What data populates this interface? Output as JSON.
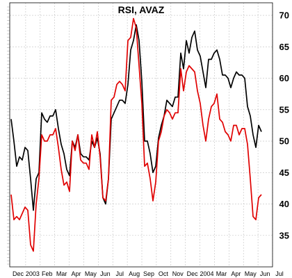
{
  "chart_data": {
    "type": "line",
    "title": "RSI, AVAZ",
    "xlabel": "",
    "ylabel": "",
    "ylim": [
      30,
      72
    ],
    "y_ticks": [
      35,
      40,
      45,
      50,
      55,
      60,
      65,
      70
    ],
    "x_ticks": [
      "Dec",
      "2003",
      "Feb",
      "Mar",
      "Apr",
      "May",
      "Jun",
      "Jul",
      "Aug",
      "Sep",
      "Oct",
      "Nov",
      "Dec",
      "2004",
      "Mar",
      "Apr",
      "May",
      "Jun",
      "Jul"
    ],
    "grid": true,
    "x": [
      0,
      1,
      2,
      3,
      4,
      5,
      6,
      7,
      8,
      9,
      10,
      11,
      12,
      13,
      14,
      15,
      16,
      17,
      18,
      19,
      20,
      21,
      22,
      23,
      24,
      25,
      26,
      27,
      28,
      29,
      30,
      31,
      32,
      33,
      34,
      35,
      36,
      37,
      38,
      39,
      40,
      41,
      42,
      43,
      44,
      45,
      46,
      47,
      48,
      49,
      50,
      51,
      52,
      53,
      54,
      55,
      56,
      57,
      58,
      59,
      60,
      61,
      62,
      63,
      64,
      65,
      66,
      67,
      68,
      69,
      70,
      71,
      72,
      73,
      74,
      75,
      76,
      77,
      78,
      79,
      80,
      81,
      82,
      83,
      84,
      85,
      86,
      87,
      88,
      89,
      90
    ],
    "series": [
      {
        "color": "#000000",
        "values": [
          53.5,
          50.0,
          46.0,
          47.5,
          47.0,
          49.0,
          48.5,
          44.0,
          39.0,
          44.0,
          45.0,
          54.5,
          53.5,
          53.0,
          54.0,
          54.0,
          55.0,
          52.0,
          49.5,
          48.0,
          45.5,
          44.5,
          50.0,
          49.0,
          51.0,
          48.0,
          47.5,
          47.5,
          47.0,
          50.0,
          49.0,
          50.5,
          48.0,
          41.0,
          40.0,
          44.0,
          53.5,
          54.5,
          55.5,
          56.5,
          56.5,
          56.0,
          59.0,
          64.5,
          66.0,
          68.5,
          66.0,
          59.5,
          50.0,
          50.0,
          48.0,
          45.0,
          46.0,
          50.5,
          52.5,
          54.0,
          56.5,
          56.0,
          55.5,
          57.0,
          57.0,
          64.0,
          61.5,
          66.0,
          64.0,
          66.5,
          67.5,
          64.5,
          63.5,
          61.0,
          58.5,
          63.0,
          63.0,
          64.0,
          64.5,
          63.0,
          60.5,
          60.5,
          60.0,
          58.5,
          60.0,
          61.0,
          60.5,
          60.5,
          60.0,
          55.5,
          54.0,
          51.0,
          49.0,
          52.5,
          51.5
        ]
      },
      {
        "color": "#e00000",
        "values": [
          41.5,
          37.5,
          38.0,
          37.5,
          38.5,
          39.5,
          39.0,
          33.5,
          32.5,
          40.0,
          44.0,
          51.0,
          50.0,
          50.0,
          51.0,
          51.0,
          52.0,
          49.0,
          45.5,
          43.0,
          43.5,
          42.0,
          50.0,
          48.5,
          51.0,
          47.0,
          46.5,
          46.5,
          45.5,
          51.0,
          49.0,
          51.5,
          47.5,
          41.0,
          40.5,
          44.0,
          56.5,
          57.0,
          59.0,
          59.5,
          59.0,
          58.0,
          66.0,
          66.5,
          69.5,
          68.0,
          62.0,
          56.0,
          46.0,
          46.5,
          44.0,
          40.5,
          43.5,
          50.0,
          51.5,
          54.0,
          55.0,
          54.5,
          53.5,
          54.5,
          54.5,
          61.5,
          58.0,
          61.0,
          62.0,
          61.5,
          61.0,
          58.0,
          56.0,
          52.5,
          50.0,
          53.5,
          55.5,
          56.0,
          57.5,
          53.5,
          53.0,
          51.5,
          51.0,
          50.0,
          52.5,
          52.5,
          51.0,
          52.0,
          52.0,
          49.5,
          44.0,
          38.0,
          37.5,
          41.0,
          41.5
        ]
      }
    ]
  }
}
